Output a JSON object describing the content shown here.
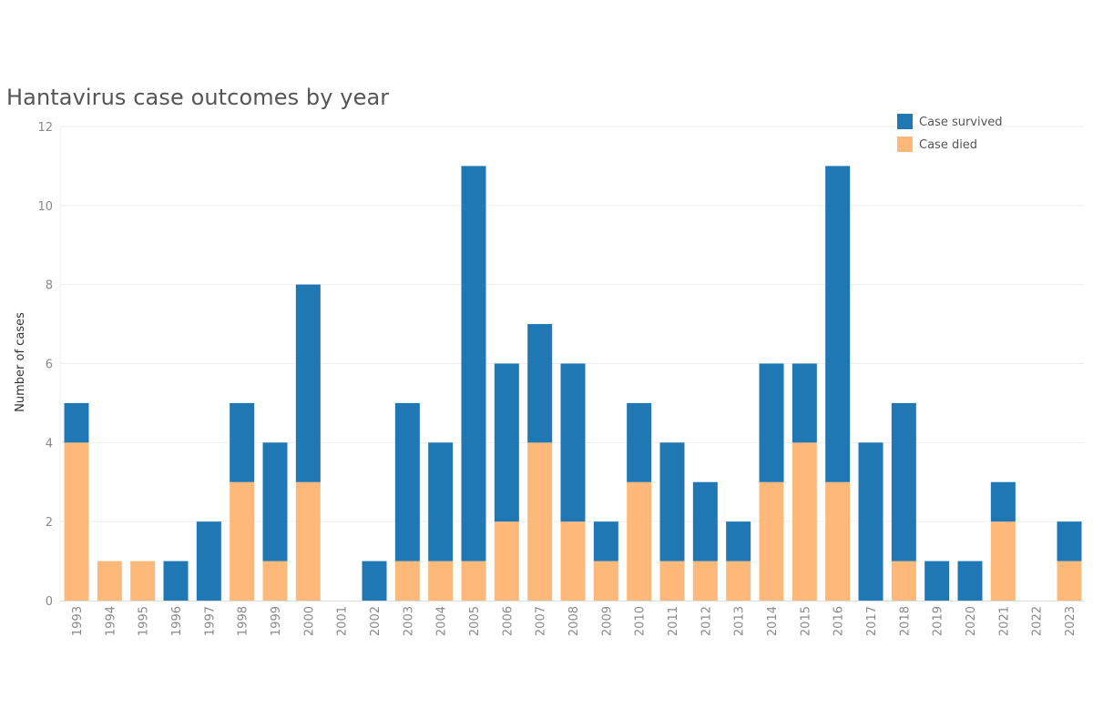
{
  "chart_data": {
    "type": "bar",
    "stacked": true,
    "title": "Hantavirus case outcomes by year",
    "xlabel": "",
    "ylabel": "Number of cases",
    "ylim": [
      0,
      12
    ],
    "yticks": [
      0,
      2,
      4,
      6,
      8,
      10,
      12
    ],
    "grid": true,
    "legend_position": "top-right",
    "categories": [
      "1993",
      "1994",
      "1995",
      "1996",
      "1997",
      "1998",
      "1999",
      "2000",
      "2001",
      "2002",
      "2003",
      "2004",
      "2005",
      "2006",
      "2007",
      "2008",
      "2009",
      "2010",
      "2011",
      "2012",
      "2013",
      "2014",
      "2015",
      "2016",
      "2017",
      "2018",
      "2019",
      "2020",
      "2021",
      "2022",
      "2023"
    ],
    "series": [
      {
        "name": "Case died",
        "color": "#FDB87A",
        "values": [
          4,
          1,
          1,
          0,
          0,
          3,
          1,
          3,
          0,
          0,
          1,
          1,
          1,
          2,
          4,
          2,
          1,
          3,
          1,
          1,
          1,
          3,
          4,
          3,
          0,
          1,
          0,
          0,
          2,
          0,
          1
        ]
      },
      {
        "name": "Case survived",
        "color": "#1F77B4",
        "values": [
          1,
          0,
          0,
          1,
          2,
          2,
          3,
          5,
          0,
          1,
          4,
          3,
          10,
          4,
          3,
          4,
          1,
          2,
          3,
          2,
          1,
          3,
          2,
          8,
          4,
          4,
          1,
          1,
          1,
          0,
          1
        ]
      }
    ]
  }
}
